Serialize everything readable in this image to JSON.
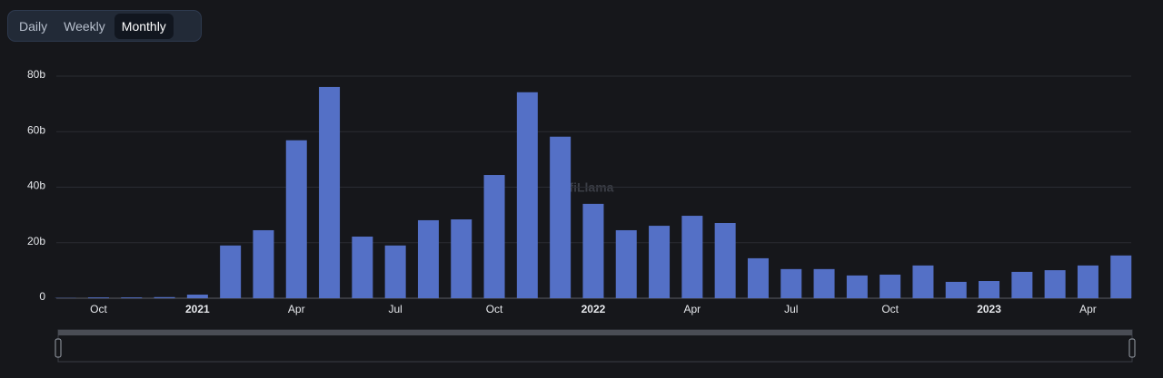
{
  "tabs": [
    "Daily",
    "Weekly",
    "Monthly"
  ],
  "selected_tab": 2,
  "chart_data": {
    "type": "bar",
    "watermark": "DefiLlama",
    "color": "#5470c6",
    "categories": [
      null,
      "Oct",
      null,
      null,
      "2021",
      null,
      null,
      "Apr",
      null,
      null,
      "Jul",
      null,
      null,
      "Oct",
      null,
      null,
      "2022",
      null,
      null,
      "Apr",
      null,
      null,
      "Jul",
      null,
      null,
      "Oct",
      null,
      null,
      "2023",
      null,
      null,
      "Apr",
      null
    ],
    "values": [
      0.1,
      0.3,
      0.3,
      0.4,
      1.3,
      19,
      24.5,
      56.9,
      76.1,
      22.2,
      19,
      28.1,
      28.4,
      44.4,
      74.2,
      58.2,
      34,
      24.5,
      26.1,
      29.7,
      27.1,
      14.4,
      10.5,
      10.5,
      8.2,
      8.5,
      11.8,
      5.9,
      6.2,
      9.5,
      10.1,
      11.8,
      15.4
    ],
    "ylim": [
      0,
      80
    ],
    "yticks": [
      0,
      {
        "value": 20,
        "label": "20b"
      },
      {
        "value": 40,
        "label": "40b"
      },
      {
        "value": 60,
        "label": "60b"
      },
      {
        "value": 80,
        "label": "80b"
      }
    ],
    "grid": true
  }
}
